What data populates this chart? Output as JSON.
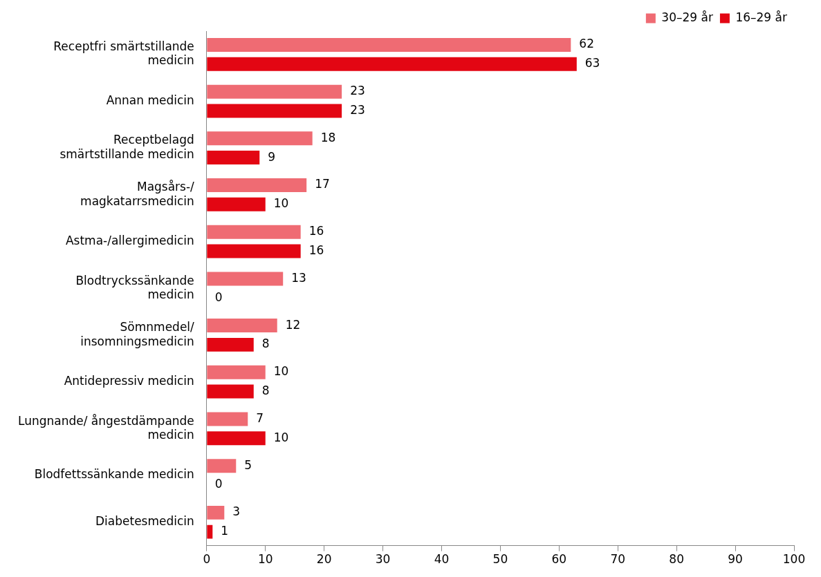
{
  "chart_data": {
    "type": "bar",
    "orientation": "horizontal",
    "categories": [
      "Receptfri smärtstillande medicin",
      "Annan medicin",
      "Receptbelagd smärtstillande medicin",
      "Magsårs-/ magkatarrsmedicin",
      "Astma-/allergimedicin",
      "Blodtryckssänkande medicin",
      "Sömnmedel/ insomningsmedicin",
      "Antidepressiv medicin",
      "Lungnande/ ångestdämpande medicin",
      "Blodfettssänkande medicin",
      "Diabetesmedicin"
    ],
    "series": [
      {
        "name": "30–29 år",
        "color": "#ef6b73",
        "values": [
          62,
          23,
          18,
          17,
          16,
          13,
          12,
          10,
          7,
          5,
          3
        ]
      },
      {
        "name": "16–29 år",
        "color": "#e30613",
        "values": [
          63,
          23,
          9,
          10,
          16,
          0,
          8,
          8,
          10,
          0,
          1
        ]
      }
    ],
    "xlim": [
      0,
      100
    ],
    "xticks": [
      0,
      10,
      20,
      30,
      40,
      50,
      60,
      70,
      80,
      90,
      100
    ],
    "grid": false,
    "legend": "top right",
    "data_labels": true
  }
}
